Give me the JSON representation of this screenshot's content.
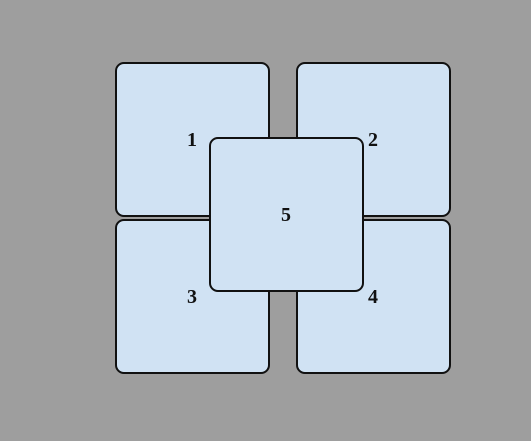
{
  "colors": {
    "background": "#9e9e9e",
    "tile_fill": "#d0e2f3",
    "tile_border": "#111111",
    "label": "#111111"
  },
  "tiles": [
    {
      "label": "1"
    },
    {
      "label": "2"
    },
    {
      "label": "3"
    },
    {
      "label": "4"
    },
    {
      "label": "5"
    }
  ]
}
